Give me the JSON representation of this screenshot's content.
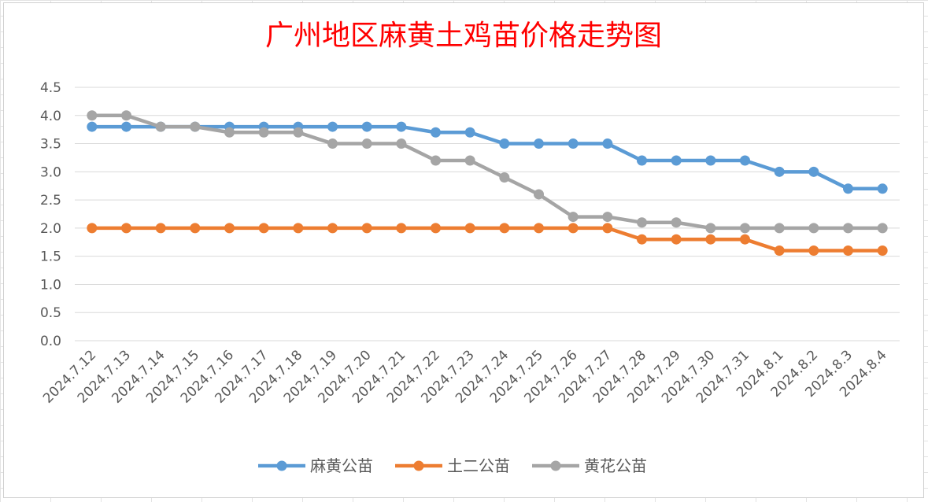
{
  "chart_data": {
    "type": "line",
    "title": "广州地区麻黄土鸡苗价格走势图",
    "xlabel": "",
    "ylabel": "",
    "ylim": [
      0,
      4.5
    ],
    "yticks": [
      "0.0",
      "0.5",
      "1.0",
      "1.5",
      "2.0",
      "2.5",
      "3.0",
      "3.5",
      "4.0",
      "4.5"
    ],
    "grid": true,
    "legend_position": "bottom",
    "categories": [
      "2024.7.12",
      "2024.7.13",
      "2024.7.14",
      "2024.7.15",
      "2024.7.16",
      "2024.7.17",
      "2024.7.18",
      "2024.7.19",
      "2024.7.20",
      "2024.7.21",
      "2024.7.22",
      "2024.7.23",
      "2024.7.24",
      "2024.7.25",
      "2024.7.26",
      "2024.7.27",
      "2024.7.28",
      "2024.7.29",
      "2024.7.30",
      "2024.7.31",
      "2024.8.1",
      "2024.8.2",
      "2024.8.3",
      "2024.8.4"
    ],
    "series": [
      {
        "name": "麻黄公苗",
        "color": "#5b9bd5",
        "values": [
          3.8,
          3.8,
          3.8,
          3.8,
          3.8,
          3.8,
          3.8,
          3.8,
          3.8,
          3.8,
          3.7,
          3.7,
          3.5,
          3.5,
          3.5,
          3.5,
          3.2,
          3.2,
          3.2,
          3.2,
          3.0,
          3.0,
          2.7,
          2.7
        ]
      },
      {
        "name": "土二公苗",
        "color": "#ed7d31",
        "values": [
          2.0,
          2.0,
          2.0,
          2.0,
          2.0,
          2.0,
          2.0,
          2.0,
          2.0,
          2.0,
          2.0,
          2.0,
          2.0,
          2.0,
          2.0,
          2.0,
          1.8,
          1.8,
          1.8,
          1.8,
          1.6,
          1.6,
          1.6,
          1.6
        ]
      },
      {
        "name": "黄花公苗",
        "color": "#a5a5a5",
        "values": [
          4.0,
          4.0,
          3.8,
          3.8,
          3.7,
          3.7,
          3.7,
          3.5,
          3.5,
          3.5,
          3.2,
          3.2,
          2.9,
          2.6,
          2.2,
          2.2,
          2.1,
          2.1,
          2.0,
          2.0,
          2.0,
          2.0,
          2.0,
          2.0
        ]
      }
    ]
  }
}
